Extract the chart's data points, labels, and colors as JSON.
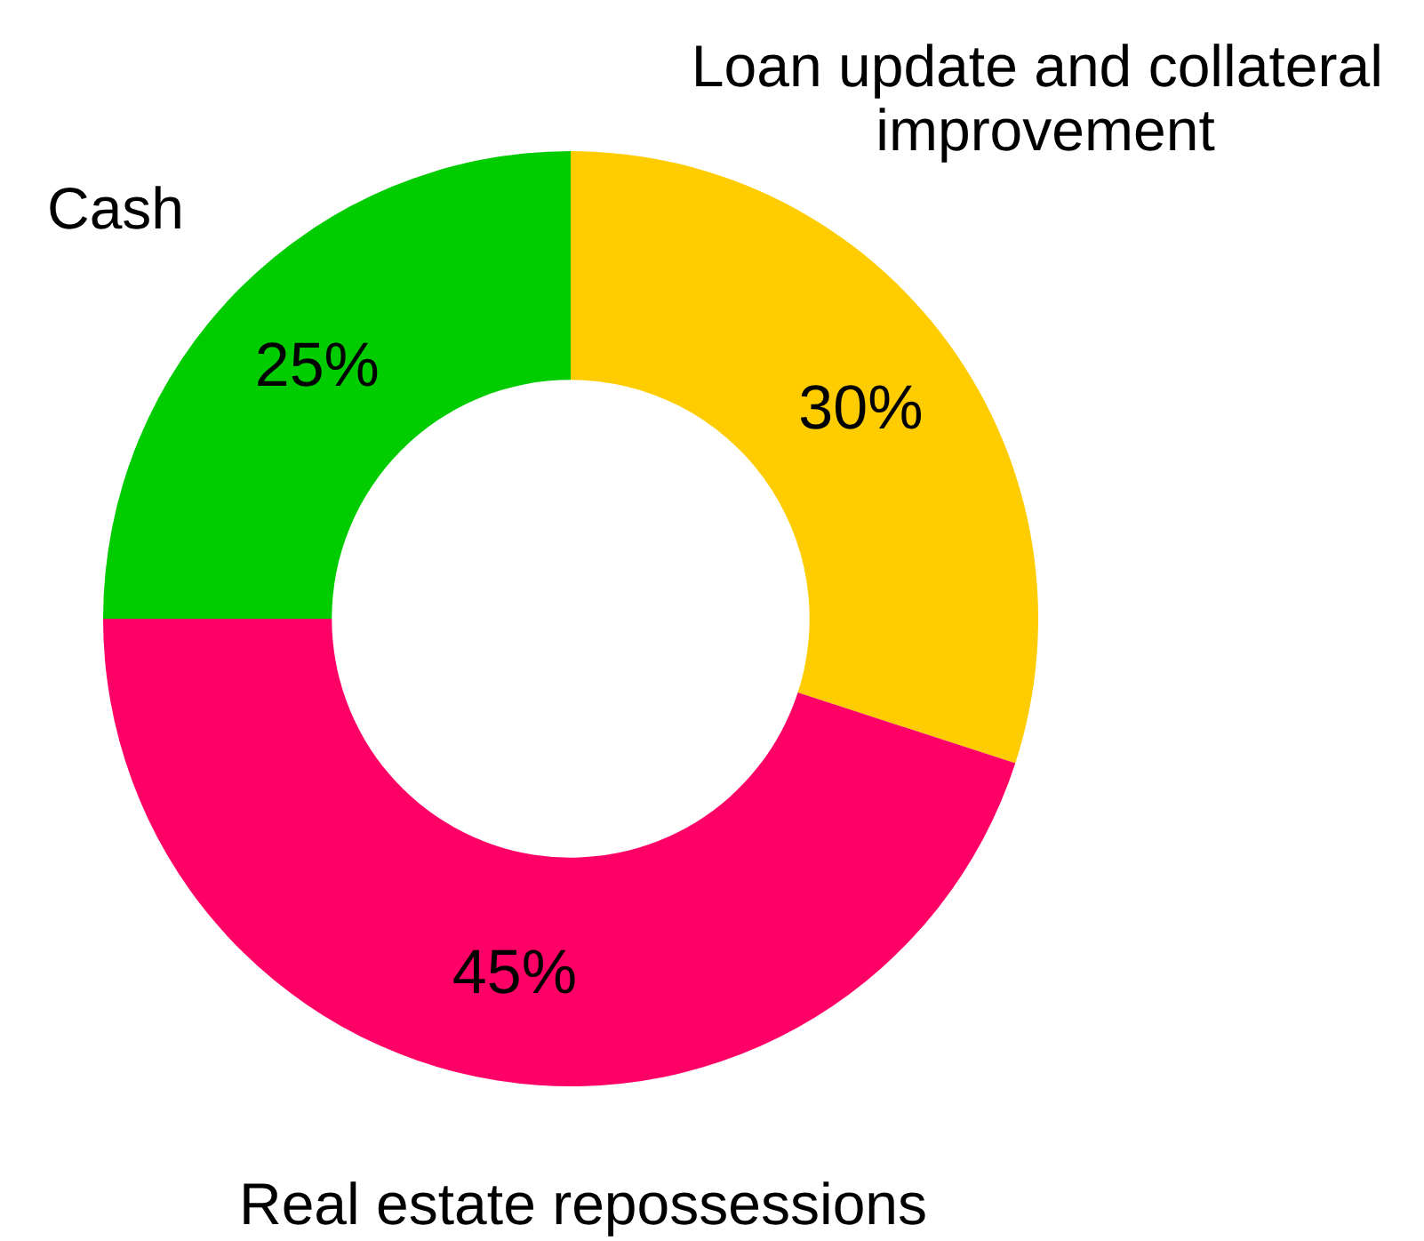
{
  "chart_data": {
    "type": "donut",
    "categories": [
      "Loan update and collateral improvement",
      "Real estate repossessions",
      "Cash"
    ],
    "values": [
      30,
      45,
      25
    ],
    "colors": [
      "#ffcc00",
      "#ff0066",
      "#00cc00"
    ],
    "value_labels": [
      "30%",
      "45%",
      "25%"
    ],
    "legend": false
  }
}
